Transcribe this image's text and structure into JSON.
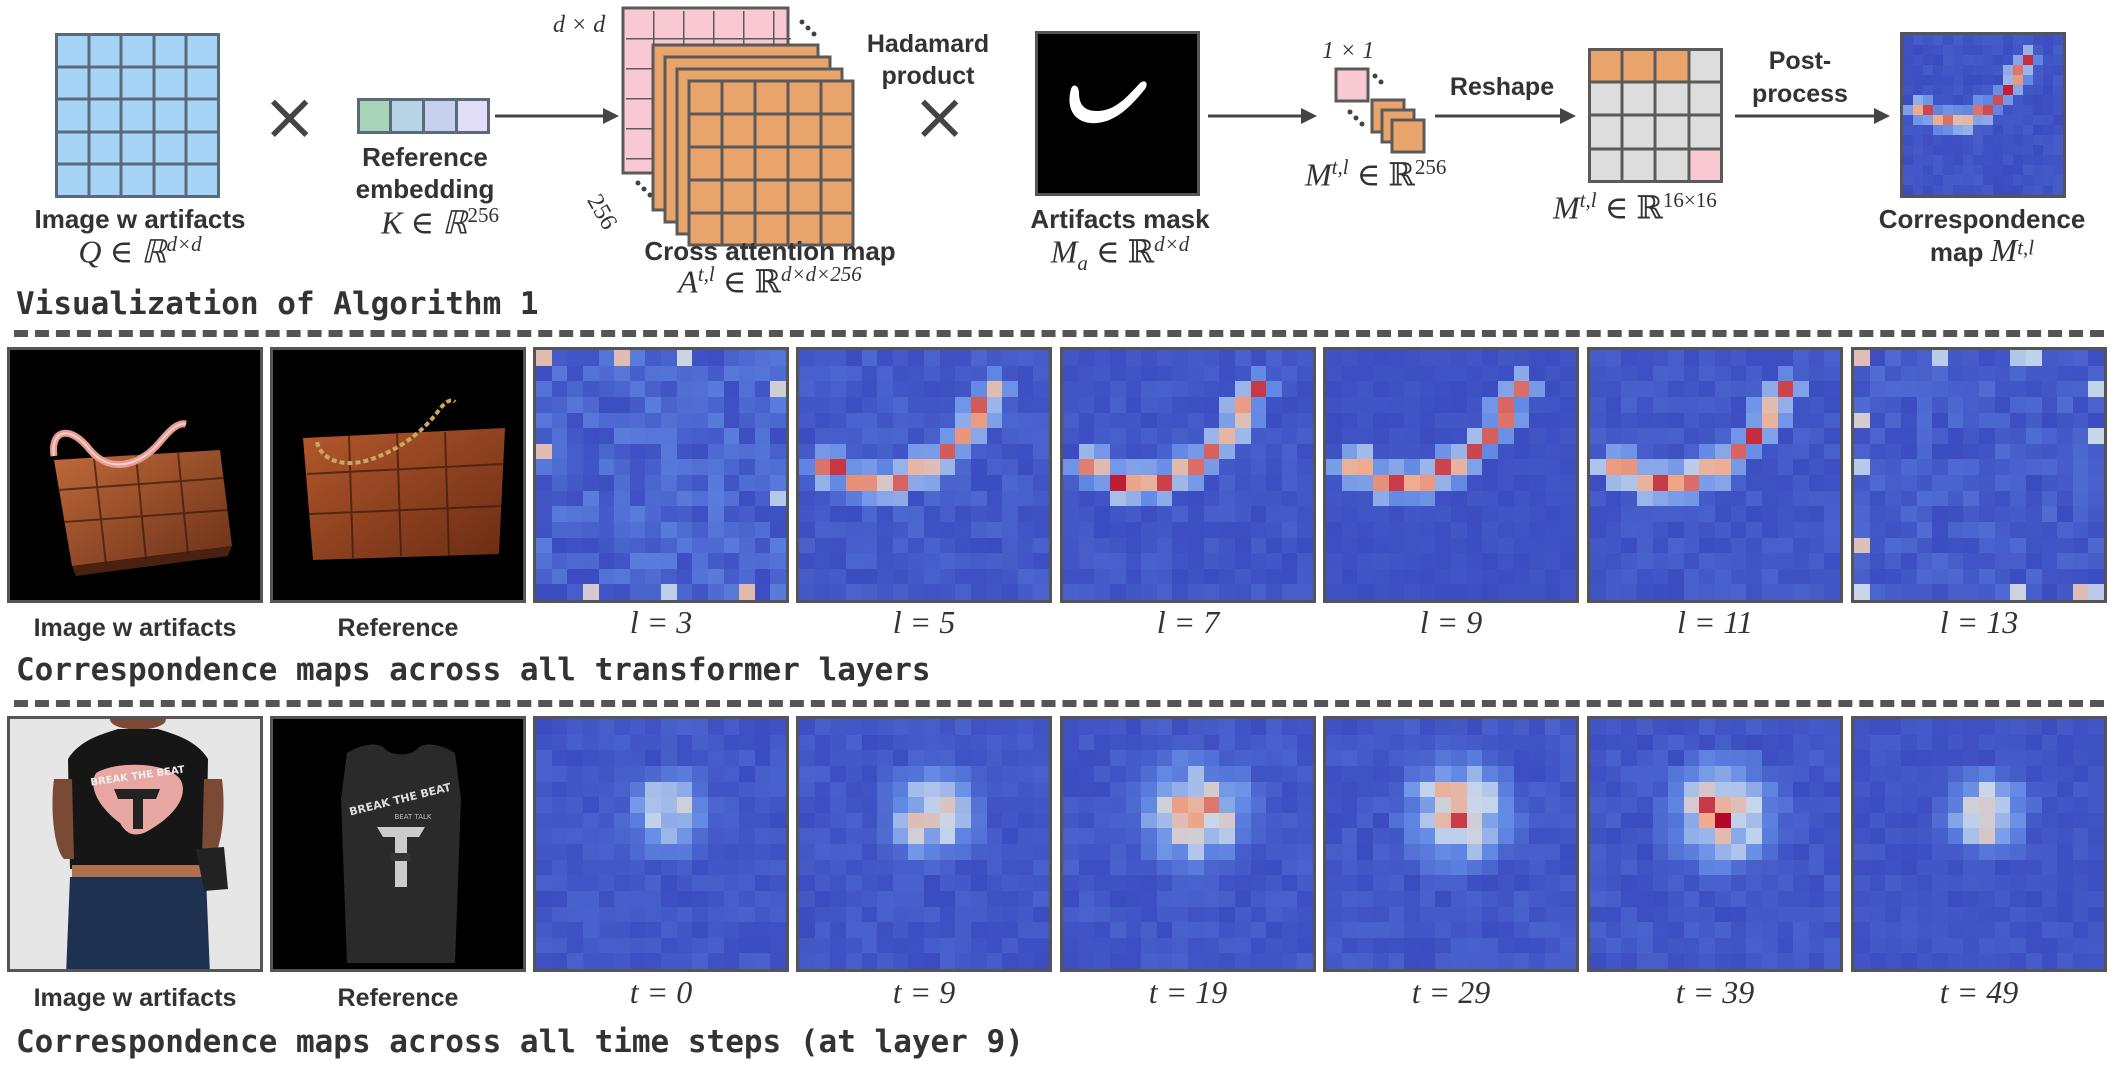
{
  "algorithm": {
    "image_label": "Image w artifacts",
    "image_math": "Q ∈ ℝ",
    "image_math_sup": "d×d",
    "ref_label_1": "Reference",
    "ref_label_2": "embedding",
    "ref_math": "K ∈ ℝ",
    "ref_math_sup": "256",
    "dxd": "d × d",
    "n256": "256",
    "hadamard_1": "Hadamard",
    "hadamard_2": "product",
    "cross_label": "Cross attention map",
    "cross_math": "A",
    "cross_math_sup1": "t,l",
    "cross_math_mid": " ∈ ℝ",
    "cross_math_sup2": "d×d×256",
    "mask_label": "Artifacts mask",
    "mask_math": "M",
    "mask_math_sub": "a",
    "mask_math_mid": " ∈ ℝ",
    "mask_math_sup": "d×d",
    "one_by_one": "1 × 1",
    "vec_math": "M",
    "vec_math_sup1": "t,l",
    "vec_math_mid": " ∈ ℝ",
    "vec_math_sup2": "256",
    "reshape": "Reshape",
    "mat_math": "M",
    "mat_math_sup1": "t,l",
    "mat_math_mid": " ∈ ℝ",
    "mat_math_sup2": "16×16",
    "post_1": "Post-",
    "post_2": "process",
    "corr_1": "Correspondence",
    "corr_2": "map ",
    "corr_math": "M",
    "corr_math_sup": "t,l",
    "times": "×",
    "section_title": "Visualization of Algorithm 1"
  },
  "layers_row": {
    "image_caption": "Image w artifacts",
    "reference_caption": "Reference",
    "captions": [
      "l = 3",
      "l = 5",
      "l = 7",
      "l = 9",
      "l = 11",
      "l = 13"
    ],
    "section_title": "Correspondence maps across all transformer layers"
  },
  "time_row": {
    "image_caption": "Image w artifacts",
    "reference_caption": "Reference",
    "captions": [
      "t = 0",
      "t = 9",
      "t = 19",
      "t = 29",
      "t = 39",
      "t = 49"
    ],
    "section_title": "Correspondence maps across all time steps (at layer 9)"
  },
  "photo_text": {
    "shirt_1": "BREAK THE BEAT",
    "shirt_2": "BEAT TALK"
  },
  "colors": {
    "grid_blue": "#a6d4f7",
    "pink": "#f9c9d3",
    "orange": "#e8a46a",
    "heat_low": "#3b4cc0",
    "heat_high": "#b40426"
  }
}
